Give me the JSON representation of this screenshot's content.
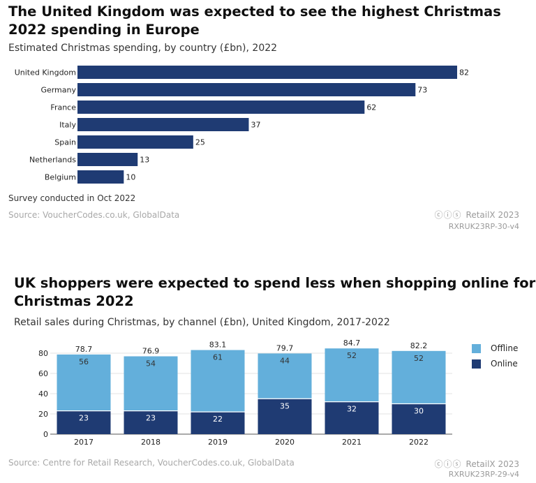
{
  "colors": {
    "navy": "#1f3b73",
    "light": "#63afdb",
    "source_grey": "#a8a8a8"
  },
  "chart1": {
    "title": "The United Kingdom was expected to see the highest Christmas 2022 spending in Europe",
    "subtitle": "Estimated Christmas spending, by country (£bn), 2022",
    "note": "Survey conducted in Oct 2022",
    "source": "Source: VoucherCodes.co.uk, GlobalData",
    "brand": "RetailX 2023",
    "brand_icons": "ⓒⓘⓢ",
    "code": "RXRUK23RP-30-v4"
  },
  "chart2": {
    "title": "UK shoppers were expected to spend less when shopping online for Christmas 2022",
    "subtitle": "Retail sales during Christmas, by channel (£bn), United Kingdom, 2017-2022",
    "legend": {
      "offline": "Offline",
      "online": "Online"
    },
    "source": "Source: Centre for Retail Research, VoucherCodes.co.uk, GlobalData",
    "brand": "RetailX 2023",
    "brand_icons": "ⓒⓘⓢ",
    "code": "RXRUK23RP-29-v4"
  },
  "chart_data": [
    {
      "type": "bar",
      "orientation": "horizontal",
      "title": "The United Kingdom was expected to see the highest Christmas 2022 spending in Europe",
      "subtitle": "Estimated Christmas spending, by country (£bn), 2022",
      "categories": [
        "United Kingdom",
        "Germany",
        "France",
        "Italy",
        "Spain",
        "Netherlands",
        "Belgium"
      ],
      "values": [
        82,
        73,
        62,
        37,
        25,
        13,
        10
      ],
      "xlim": [
        0,
        82
      ]
    },
    {
      "type": "bar",
      "stacked": true,
      "title": "UK shoppers were expected to spend less when shopping online for Christmas 2022",
      "subtitle": "Retail sales during Christmas, by channel (£bn), United Kingdom, 2017-2022",
      "categories": [
        "2017",
        "2018",
        "2019",
        "2020",
        "2021",
        "2022"
      ],
      "series": [
        {
          "name": "Online",
          "values": [
            23,
            23,
            22,
            35,
            32,
            30
          ]
        },
        {
          "name": "Offline",
          "values": [
            56,
            54,
            61,
            44,
            52,
            52
          ]
        }
      ],
      "totals": [
        "78.7",
        "76.9",
        "83.1",
        "79.7",
        "84.7",
        "82.2"
      ],
      "ylim": [
        0,
        90
      ],
      "yticks": [
        0,
        20,
        40,
        60,
        80
      ],
      "legend": "right"
    }
  ]
}
